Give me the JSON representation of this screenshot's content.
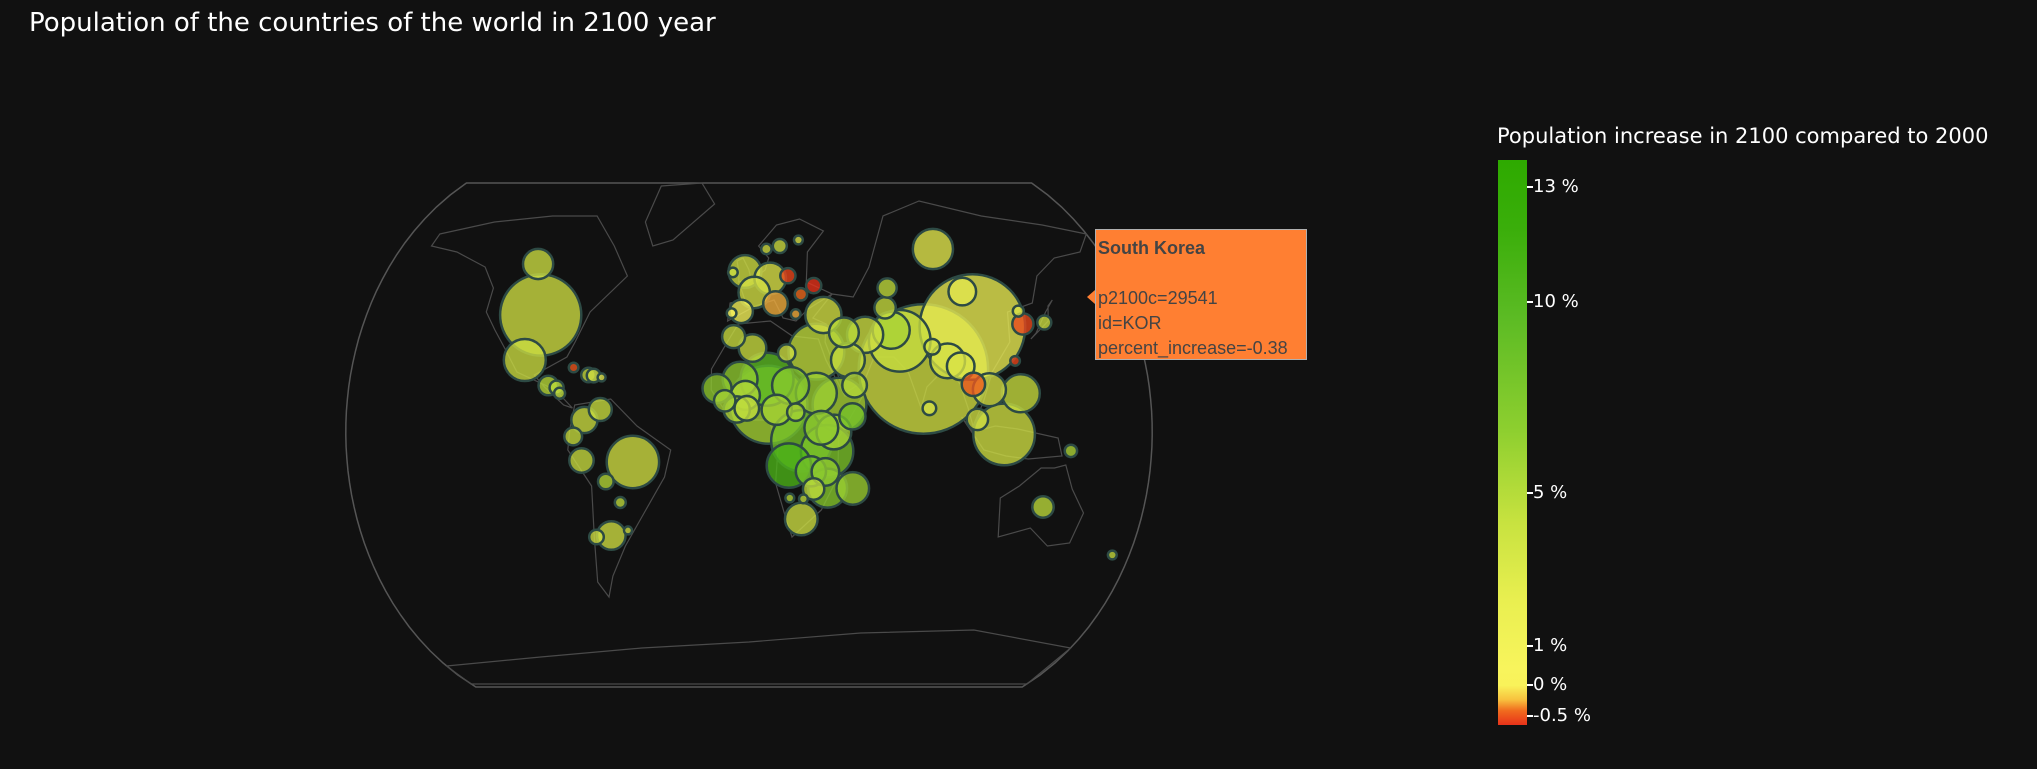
{
  "title": "Population of the countries of the world in 2100 year",
  "colorbar": {
    "title": "Population increase in 2100 compared to 2000",
    "ticks": [
      {
        "label": "13 %",
        "value": 13
      },
      {
        "label": "10 %",
        "value": 10
      },
      {
        "label": "5 %",
        "value": 5
      },
      {
        "label": "1 %",
        "value": 1
      },
      {
        "label": "0 %",
        "value": 0
      },
      {
        "label": "-0.5 %",
        "value": -0.5
      }
    ],
    "colors": {
      "high": "#2eaa00",
      "mid": "#c7e23f",
      "zero": "#f8f45c",
      "low": "#e8321a"
    }
  },
  "tooltip": {
    "country": "South Korea",
    "line1": "p2100c=29541",
    "line2": "id=KOR",
    "line3": "percent_increase=-0.38",
    "background": "#ff7f32"
  },
  "chart_data": {
    "type": "scatter",
    "projection": "natural earth",
    "marker": "bubble",
    "hovered": "KOR",
    "points": [
      {
        "id": "USA",
        "lon": -98,
        "lat": 39,
        "pop": 434,
        "pct": 3.4
      },
      {
        "id": "CAN",
        "lon": -106,
        "lat": 56,
        "pop": 60,
        "pct": 3.5
      },
      {
        "id": "MEX",
        "lon": -102,
        "lat": 24,
        "pop": 116,
        "pct": 3.6
      },
      {
        "id": "GTM",
        "lon": -90.3,
        "lat": 15.5,
        "pop": 25,
        "pct": 5.0
      },
      {
        "id": "HND",
        "lon": -86.5,
        "lat": 14.8,
        "pop": 13,
        "pct": 4.8
      },
      {
        "id": "NIC",
        "lon": -85,
        "lat": 12.9,
        "pop": 8,
        "pct": 4.5
      },
      {
        "id": "CUB",
        "lon": -79.5,
        "lat": 21.5,
        "pop": 6,
        "pct": -0.3
      },
      {
        "id": "HTI",
        "lon": -72.5,
        "lat": 19,
        "pop": 14,
        "pct": 4.0
      },
      {
        "id": "DOM",
        "lon": -70.2,
        "lat": 18.8,
        "pop": 12,
        "pct": 3.3
      },
      {
        "id": "PRI",
        "lon": -66.5,
        "lat": 18.2,
        "pop": 2,
        "pct": 2.0
      },
      {
        "id": "COL",
        "lon": -73.5,
        "lat": 4,
        "pop": 45,
        "pct": 3.6
      },
      {
        "id": "VEN",
        "lon": -66.5,
        "lat": 7.5,
        "pop": 35,
        "pct": 3.8
      },
      {
        "id": "ECU",
        "lon": -78.5,
        "lat": -1.5,
        "pop": 21,
        "pct": 4.0
      },
      {
        "id": "PER",
        "lon": -75,
        "lat": -9.5,
        "pop": 39,
        "pct": 3.9
      },
      {
        "id": "BRA",
        "lon": -52,
        "lat": -10,
        "pop": 180,
        "pct": 3.2
      },
      {
        "id": "BOL",
        "lon": -64.5,
        "lat": -16.5,
        "pop": 16,
        "pct": 5.2
      },
      {
        "id": "PRY",
        "lon": -58.5,
        "lat": -23.5,
        "pop": 8,
        "pct": 4.5
      },
      {
        "id": "CHL",
        "lon": -71,
        "lat": -35,
        "pop": 14,
        "pct": 3.3
      },
      {
        "id": "ARG",
        "lon": -64,
        "lat": -34.5,
        "pop": 54,
        "pct": 3.4
      },
      {
        "id": "URY",
        "lon": -56,
        "lat": -32.8,
        "pop": 3,
        "pct": 3.0
      },
      {
        "id": "GBR",
        "lon": -2,
        "lat": 53.5,
        "pop": 71,
        "pct": 3.3
      },
      {
        "id": "IRL",
        "lon": -8,
        "lat": 53.2,
        "pop": 6,
        "pct": 3.5
      },
      {
        "id": "FRA",
        "lon": 2.5,
        "lat": 46.5,
        "pop": 65,
        "pct": 3.0
      },
      {
        "id": "ESP",
        "lon": -3.7,
        "lat": 40.2,
        "pop": 36,
        "pct": 0.5
      },
      {
        "id": "PRT",
        "lon": -8.2,
        "lat": 39.6,
        "pop": 6,
        "pct": 0.0
      },
      {
        "id": "DEU",
        "lon": 10.4,
        "lat": 51.2,
        "pop": 66,
        "pct": 2.5
      },
      {
        "id": "ITA",
        "lon": 12.6,
        "lat": 42.8,
        "pop": 40,
        "pct": -0.1
      },
      {
        "id": "POL",
        "lon": 19.2,
        "lat": 52.1,
        "pop": 15,
        "pct": -0.4
      },
      {
        "id": "SWE",
        "lon": 16,
        "lat": 62,
        "pop": 13,
        "pct": 3.5
      },
      {
        "id": "NOR",
        "lon": 9,
        "lat": 61,
        "pop": 7,
        "pct": 3.2
      },
      {
        "id": "FIN",
        "lon": 26,
        "lat": 64,
        "pop": 5,
        "pct": 2.5
      },
      {
        "id": "UKR",
        "lon": 31.5,
        "lat": 48.8,
        "pop": 15,
        "pct": -0.5
      },
      {
        "id": "ROU",
        "lon": 25,
        "lat": 45.9,
        "pop": 10,
        "pct": -0.2
      },
      {
        "id": "GRC",
        "lon": 22,
        "lat": 39.3,
        "pop": 6,
        "pct": -0.1
      },
      {
        "id": "TUR",
        "lon": 35,
        "lat": 39,
        "pop": 86,
        "pct": 3.0
      },
      {
        "id": "RUS",
        "lon": 95,
        "lat": 61,
        "pop": 106,
        "pct": 2.0
      },
      {
        "id": "KAZ",
        "lon": 67,
        "lat": 48,
        "pop": 24,
        "pct": 4.5
      },
      {
        "id": "UZB",
        "lon": 64.5,
        "lat": 41.4,
        "pop": 30,
        "pct": 4.0
      },
      {
        "id": "IRN",
        "lon": 53.7,
        "lat": 32.4,
        "pop": 86,
        "pct": 3.5
      },
      {
        "id": "IRQ",
        "lon": 44,
        "lat": 33.2,
        "pop": 58,
        "pct": 5.0
      },
      {
        "id": "SAU",
        "lon": 45,
        "lat": 24,
        "pop": 75,
        "pct": 4.2
      },
      {
        "id": "YEM",
        "lon": 47.5,
        "lat": 15.6,
        "pop": 40,
        "pct": 5.2
      },
      {
        "id": "AFG",
        "lon": 66,
        "lat": 33.9,
        "pop": 90,
        "pct": 5.8
      },
      {
        "id": "PAK",
        "lon": 69.4,
        "lat": 30.4,
        "pop": 250,
        "pct": 4.0
      },
      {
        "id": "IND",
        "lon": 79,
        "lat": 21,
        "pop": 1100,
        "pct": 3.2
      },
      {
        "id": "NPL",
        "lon": 84,
        "lat": 28.4,
        "pop": 16,
        "pct": 3.3
      },
      {
        "id": "BGD",
        "lon": 90.3,
        "lat": 23.7,
        "pop": 80,
        "pct": 3.0
      },
      {
        "id": "LKA",
        "lon": 80.7,
        "lat": 7.9,
        "pop": 12,
        "pct": 2.8
      },
      {
        "id": "CHN",
        "lon": 104,
        "lat": 35,
        "pop": 732,
        "pct": 1.5
      },
      {
        "id": "MNG",
        "lon": 103,
        "lat": 46.8,
        "pop": 50,
        "pct": 2.0
      },
      {
        "id": "JPN",
        "lon": 138,
        "lat": 36.5,
        "pop": 13,
        "pct": 3.6
      },
      {
        "id": "KOR",
        "lon": 127.8,
        "lat": 36,
        "pop": 29.541,
        "pct": -0.38
      },
      {
        "id": "PRK",
        "lon": 127.2,
        "lat": 40.3,
        "pop": 8,
        "pct": 2.8
      },
      {
        "id": "TWN",
        "lon": 121,
        "lat": 23.7,
        "pop": 6,
        "pct": -0.4
      },
      {
        "id": "MMR",
        "lon": 96,
        "lat": 21.9,
        "pop": 50,
        "pct": 2.7
      },
      {
        "id": "THA",
        "lon": 101,
        "lat": 15.9,
        "pop": 36,
        "pct": -0.3
      },
      {
        "id": "VNM",
        "lon": 108,
        "lat": 14.1,
        "pop": 72,
        "pct": 2.9
      },
      {
        "id": "PHL",
        "lon": 122,
        "lat": 12.9,
        "pop": 95,
        "pct": 4.0
      },
      {
        "id": "MYS",
        "lon": 102,
        "lat": 4.2,
        "pop": 30,
        "pct": 3.3
      },
      {
        "id": "IDN",
        "lon": 113.9,
        "lat": -0.8,
        "pop": 250,
        "pct": 3.3
      },
      {
        "id": "PNG",
        "lon": 143.9,
        "lat": -6.3,
        "pop": 10,
        "pct": 5.5
      },
      {
        "id": "AUS",
        "lon": 134,
        "lat": -25,
        "pop": 30,
        "pct": 4.8
      },
      {
        "id": "NZL",
        "lon": 172,
        "lat": -41,
        "pop": 5,
        "pct": 4.0
      },
      {
        "id": "MAR",
        "lon": -7.1,
        "lat": 31.8,
        "pop": 35,
        "pct": 3.8
      },
      {
        "id": "DZA",
        "lon": 1.6,
        "lat": 28,
        "pop": 50,
        "pct": 3.8
      },
      {
        "id": "LBY",
        "lon": 17.2,
        "lat": 26.3,
        "pop": 20,
        "pct": 3.5
      },
      {
        "id": "EGY",
        "lon": 30.8,
        "lat": 26.8,
        "pop": 205,
        "pct": 4.5
      },
      {
        "id": "SEN",
        "lon": -14.4,
        "lat": 14.5,
        "pop": 55,
        "pct": 7.0
      },
      {
        "id": "MLI",
        "lon": -4,
        "lat": 17.6,
        "pop": 80,
        "pct": 7.0
      },
      {
        "id": "NER",
        "lon": 8.1,
        "lat": 17.6,
        "pop": 185,
        "pct": 10.0
      },
      {
        "id": "TCD",
        "lon": 18.7,
        "lat": 15.5,
        "pop": 90,
        "pct": 7.5
      },
      {
        "id": "SDN",
        "lon": 30.2,
        "lat": 12.9,
        "pop": 110,
        "pct": 6.5
      },
      {
        "id": "ETH",
        "lon": 40.5,
        "lat": 9.1,
        "pop": 190,
        "pct": 5.8
      },
      {
        "id": "SOM",
        "lon": 46.2,
        "lat": 5.2,
        "pop": 45,
        "pct": 8.5
      },
      {
        "id": "NGA",
        "lon": 8.7,
        "lat": 9.1,
        "pop": 400,
        "pct": 6.0
      },
      {
        "id": "GIN",
        "lon": -10.9,
        "lat": 10.4,
        "pop": 30,
        "pct": 6.0
      },
      {
        "id": "CIV",
        "lon": -5.5,
        "lat": 7.5,
        "pop": 45,
        "pct": 5.5
      },
      {
        "id": "GHA",
        "lon": -1,
        "lat": 7.9,
        "pop": 40,
        "pct": 4.5
      },
      {
        "id": "BFA",
        "lon": -1.6,
        "lat": 12.2,
        "pop": 55,
        "pct": 5.5
      },
      {
        "id": "CMR",
        "lon": 12.4,
        "lat": 7.4,
        "pop": 60,
        "pct": 6.0
      },
      {
        "id": "CAF",
        "lon": 20.9,
        "lat": 6.6,
        "pop": 20,
        "pct": 6.0
      },
      {
        "id": "COD",
        "lon": 23.6,
        "lat": -2.9,
        "pop": 246,
        "pct": 8.5
      },
      {
        "id": "UGA",
        "lon": 32.3,
        "lat": 1.4,
        "pop": 75,
        "pct": 7.0
      },
      {
        "id": "KEN",
        "lon": 37.9,
        "lat": 0.0,
        "pop": 80,
        "pct": 6.0
      },
      {
        "id": "TZA",
        "lon": 34.9,
        "lat": -6.4,
        "pop": 180,
        "pct": 8.0
      },
      {
        "id": "AGO",
        "lon": 17.9,
        "lat": -11.2,
        "pop": 130,
        "pct": 11.0
      },
      {
        "id": "ZMB",
        "lon": 27.8,
        "lat": -13.1,
        "pop": 60,
        "pct": 8.5
      },
      {
        "id": "MOZ",
        "lon": 35.5,
        "lat": -18.7,
        "pop": 100,
        "pct": 7.5
      },
      {
        "id": "MWI",
        "lon": 34.3,
        "lat": -13.3,
        "pop": 50,
        "pct": 7.0
      },
      {
        "id": "MDG",
        "lon": 46.9,
        "lat": -18.8,
        "pop": 70,
        "pct": 6.5
      },
      {
        "id": "ZWE",
        "lon": 29.2,
        "lat": -19,
        "pop": 30,
        "pct": 4.5
      },
      {
        "id": "ZAF",
        "lon": 24,
        "lat": -29,
        "pop": 70,
        "pct": 3.5
      },
      {
        "id": "NAM",
        "lon": 18.5,
        "lat": -22,
        "pop": 5,
        "pct": 5.0
      },
      {
        "id": "BWA",
        "lon": 24.7,
        "lat": -22.3,
        "pop": 5,
        "pct": 4.5
      }
    ]
  }
}
